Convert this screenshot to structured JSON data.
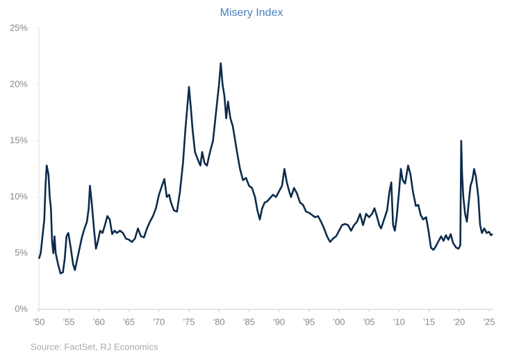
{
  "chart_data": {
    "type": "line",
    "title": "Misery Index",
    "source": "Source: FactSet, RJ Economics",
    "x": [
      1950.0,
      1950.3,
      1950.6,
      1950.9,
      1951.1,
      1951.3,
      1951.6,
      1951.8,
      1952.0,
      1952.2,
      1952.4,
      1952.6,
      1952.8,
      1953.2,
      1953.6,
      1954.0,
      1954.3,
      1954.6,
      1954.9,
      1955.3,
      1955.7,
      1956.0,
      1956.4,
      1956.8,
      1957.2,
      1957.6,
      1958.0,
      1958.3,
      1958.5,
      1958.8,
      1959.2,
      1959.5,
      1959.8,
      1960.2,
      1960.6,
      1961.0,
      1961.4,
      1961.8,
      1962.2,
      1962.6,
      1963.0,
      1963.5,
      1964.0,
      1964.5,
      1965.0,
      1965.5,
      1966.0,
      1966.5,
      1967.0,
      1967.5,
      1968.0,
      1968.5,
      1969.0,
      1969.5,
      1970.0,
      1970.5,
      1970.9,
      1971.3,
      1971.7,
      1972.0,
      1972.5,
      1973.0,
      1973.5,
      1974.0,
      1974.4,
      1974.8,
      1975.0,
      1975.3,
      1975.6,
      1976.0,
      1976.5,
      1976.9,
      1977.2,
      1977.6,
      1978.0,
      1978.5,
      1979.0,
      1979.5,
      1980.0,
      1980.3,
      1980.6,
      1980.9,
      1981.2,
      1981.5,
      1981.9,
      1982.3,
      1982.7,
      1983.0,
      1983.5,
      1984.0,
      1984.5,
      1985.0,
      1985.5,
      1986.0,
      1986.4,
      1986.8,
      1987.2,
      1987.6,
      1988.0,
      1988.5,
      1989.0,
      1989.5,
      1990.0,
      1990.5,
      1990.9,
      1991.3,
      1991.7,
      1992.0,
      1992.5,
      1993.0,
      1993.5,
      1994.0,
      1994.5,
      1995.0,
      1995.5,
      1996.0,
      1996.5,
      1997.0,
      1997.5,
      1998.0,
      1998.5,
      1999.0,
      1999.5,
      2000.0,
      2000.5,
      2001.0,
      2001.5,
      2002.0,
      2002.5,
      2003.0,
      2003.5,
      2004.0,
      2004.5,
      2005.0,
      2005.5,
      2005.9,
      2006.3,
      2006.7,
      2007.0,
      2007.5,
      2008.0,
      2008.4,
      2008.7,
      2009.0,
      2009.3,
      2009.6,
      2010.0,
      2010.3,
      2010.6,
      2011.0,
      2011.5,
      2011.9,
      2012.3,
      2012.8,
      2013.2,
      2013.6,
      2014.0,
      2014.5,
      2014.9,
      2015.3,
      2015.7,
      2016.0,
      2016.5,
      2017.0,
      2017.4,
      2017.8,
      2018.2,
      2018.6,
      2019.0,
      2019.5,
      2019.9,
      2020.2,
      2020.35,
      2020.5,
      2020.7,
      2021.0,
      2021.3,
      2021.6,
      2021.9,
      2022.2,
      2022.5,
      2022.8,
      2023.2,
      2023.5,
      2023.8,
      2024.2,
      2024.6,
      2025.0,
      2025.3,
      2025.6
    ],
    "values": [
      4.5,
      5.0,
      6.5,
      8,
      11,
      12.8,
      12,
      10,
      9,
      6,
      5,
      6.5,
      5,
      4,
      3.2,
      3.3,
      4.5,
      6.5,
      6.8,
      5.5,
      4.0,
      3.5,
      4.5,
      5.5,
      6.5,
      7.2,
      7.8,
      9,
      11,
      9.5,
      7,
      5.4,
      6,
      7,
      6.8,
      7.5,
      8.3,
      8,
      6.7,
      7,
      6.8,
      7,
      6.8,
      6.3,
      6.2,
      6.0,
      6.3,
      7.2,
      6.5,
      6.4,
      7.2,
      7.8,
      8.3,
      9,
      10.2,
      11,
      11.6,
      10,
      10.2,
      9.5,
      8.8,
      8.7,
      10.5,
      13,
      16,
      18.5,
      19.8,
      18,
      16,
      14,
      13.3,
      12.8,
      14,
      13,
      12.8,
      14,
      15,
      17.5,
      20,
      21.9,
      20,
      19,
      17,
      18.5,
      17,
      16.3,
      15,
      14,
      12.5,
      11.5,
      11.7,
      11,
      10.8,
      10,
      8.8,
      8,
      9,
      9.5,
      9.6,
      9.9,
      10.2,
      10.0,
      10.5,
      11,
      12.5,
      11.3,
      10.5,
      10,
      10.8,
      10.3,
      9.5,
      9.3,
      8.7,
      8.6,
      8.4,
      8.2,
      8.3,
      7.8,
      7.2,
      6.5,
      6.0,
      6.3,
      6.5,
      7,
      7.5,
      7.6,
      7.5,
      7.0,
      7.5,
      7.8,
      8.5,
      7.5,
      8.5,
      8.2,
      8.5,
      9.0,
      8.3,
      7.5,
      7.2,
      8.0,
      8.8,
      10.5,
      11.3,
      7.5,
      7.0,
      8.2,
      10.5,
      12.5,
      11.5,
      11.2,
      12.8,
      12,
      10.5,
      9.2,
      9.3,
      8.4,
      8.0,
      8.2,
      7.0,
      5.5,
      5.3,
      5.5,
      6.0,
      6.5,
      6.1,
      6.6,
      6.2,
      6.7,
      5.9,
      5.5,
      5.4,
      5.7,
      15.0,
      12,
      10,
      8.5,
      7.8,
      9.5,
      11,
      11.5,
      12.5,
      11.8,
      10,
      7.5,
      6.8,
      7.2,
      6.8,
      6.9,
      6.6,
      6.7
    ],
    "color": "#0c2b4b",
    "xlim": [
      1950,
      2025
    ],
    "xticks": [
      {
        "value": 1950,
        "label": "'50"
      },
      {
        "value": 1955,
        "label": "'55"
      },
      {
        "value": 1960,
        "label": "'60"
      },
      {
        "value": 1965,
        "label": "'65"
      },
      {
        "value": 1970,
        "label": "'70"
      },
      {
        "value": 1975,
        "label": "'75"
      },
      {
        "value": 1980,
        "label": "'80"
      },
      {
        "value": 1985,
        "label": "'85"
      },
      {
        "value": 1990,
        "label": "'90"
      },
      {
        "value": 1995,
        "label": "'95"
      },
      {
        "value": 2000,
        "label": "'00"
      },
      {
        "value": 2005,
        "label": "'05"
      },
      {
        "value": 2010,
        "label": "'10"
      },
      {
        "value": 2015,
        "label": "'15"
      },
      {
        "value": 2020,
        "label": "'20"
      },
      {
        "value": 2025,
        "label": "'25"
      }
    ],
    "ylim": [
      0,
      25
    ],
    "yticks": [
      {
        "value": 0,
        "label": "0%"
      },
      {
        "value": 5,
        "label": "5%"
      },
      {
        "value": 10,
        "label": "10%"
      },
      {
        "value": 15,
        "label": "15%"
      },
      {
        "value": 20,
        "label": "20%"
      },
      {
        "value": 25,
        "label": "25%"
      }
    ],
    "grid": false
  }
}
